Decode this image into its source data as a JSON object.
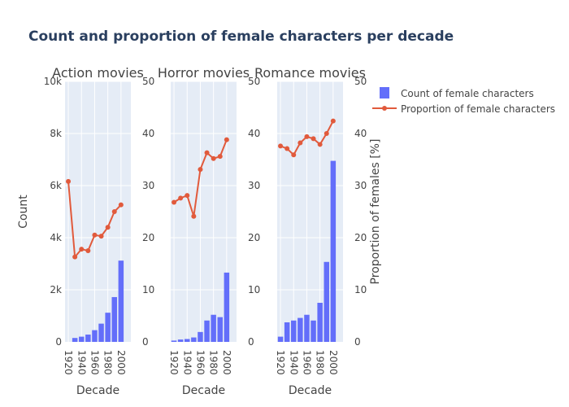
{
  "chart_data": {
    "type": "bar",
    "title": "Count and proportion of female characters per decade",
    "xlabel": "Decade",
    "ylabel_left": "Count",
    "ylabel_right": "Proportion of females [%]",
    "ylim_left": [
      0,
      10000
    ],
    "ylim_right": [
      0,
      50
    ],
    "yticks_left": [
      "0",
      "2k",
      "4k",
      "6k",
      "8k",
      "10k"
    ],
    "yticks_right": [
      "0",
      "10",
      "20",
      "30",
      "40",
      "50"
    ],
    "xticks": [
      "1920",
      "1940",
      "1960",
      "1980",
      "2000"
    ],
    "grid": true,
    "legend_position": "top-right",
    "legend": {
      "bar_label": "Count of female characters",
      "line_label": "Proportion of female characters"
    },
    "colors": {
      "bar": "#636efa",
      "line": "#e15a3c",
      "plot_bg": "#e5ecf6",
      "title": "#2a3f5f",
      "text": "#444444"
    },
    "x": [
      1920,
      1930,
      1940,
      1950,
      1960,
      1970,
      1980,
      1990,
      2000,
      2010
    ],
    "panels": [
      {
        "subtitle": "Action movies",
        "counts": [
          0,
          150,
          200,
          280,
          450,
          700,
          1120,
          1720,
          3120,
          null
        ],
        "proportion": [
          30.8,
          16.3,
          17.8,
          17.5,
          20.5,
          20.3,
          22.0,
          25.0,
          26.3,
          null
        ]
      },
      {
        "subtitle": "Horror movies",
        "counts": [
          50,
          90,
          110,
          170,
          380,
          820,
          1040,
          950,
          2660,
          null
        ],
        "proportion": [
          26.8,
          27.6,
          28.1,
          24.1,
          33.1,
          36.3,
          35.2,
          35.6,
          38.8,
          null
        ]
      },
      {
        "subtitle": "Romance movies",
        "counts": [
          200,
          750,
          820,
          920,
          1040,
          820,
          1500,
          3070,
          6950,
          null
        ],
        "proportion": [
          37.6,
          37.1,
          35.9,
          38.2,
          39.4,
          39.0,
          37.9,
          40.0,
          42.4,
          null
        ]
      }
    ]
  }
}
